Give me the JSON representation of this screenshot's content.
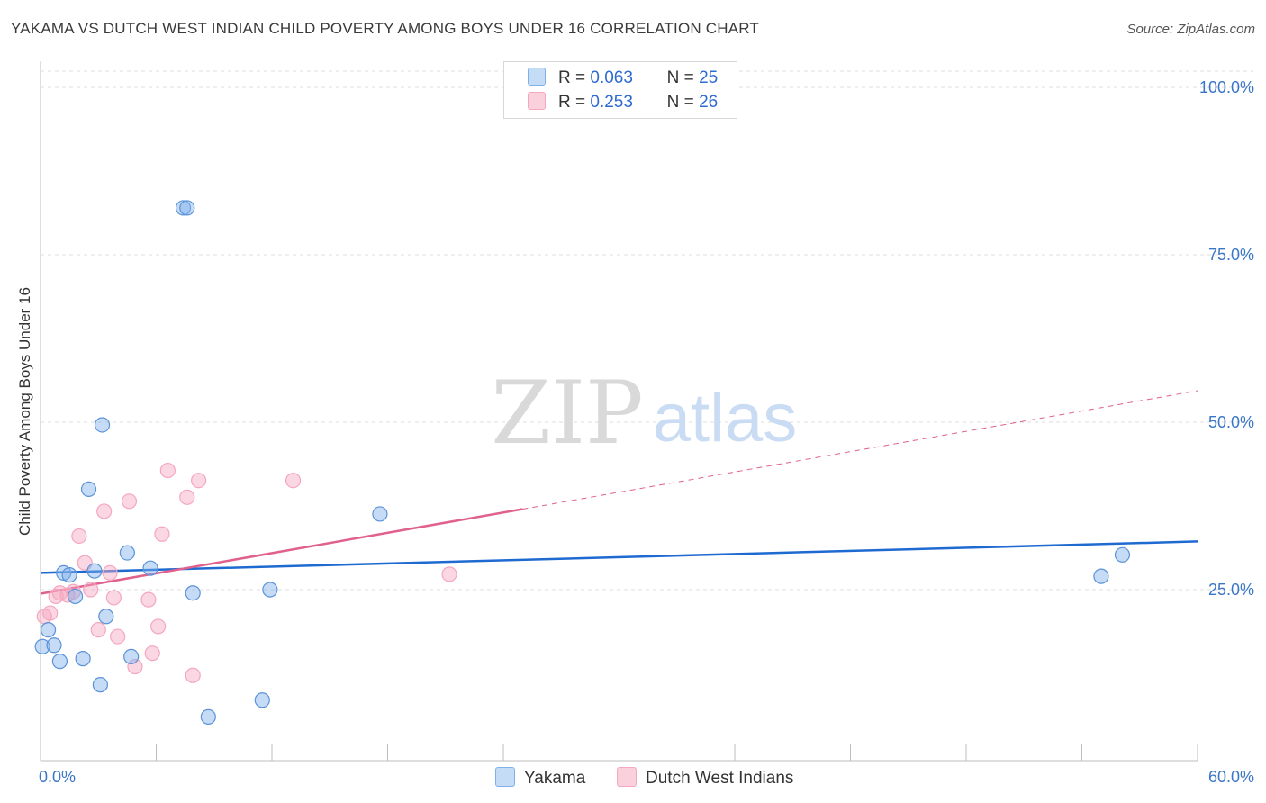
{
  "header": {
    "title": "YAKAMA VS DUTCH WEST INDIAN CHILD POVERTY AMONG BOYS UNDER 16 CORRELATION CHART",
    "source": "Source: ZipAtlas.com"
  },
  "watermark": {
    "zip": "ZIP",
    "atlas": "atlas"
  },
  "legend": {
    "r_label": "R =",
    "n_label": "N =",
    "rows": [
      {
        "r": "0.063",
        "n": "25"
      },
      {
        "r": "0.253",
        "n": "26"
      }
    ]
  },
  "chart_data": {
    "type": "scatter",
    "title": "YAKAMA VS DUTCH WEST INDIAN CHILD POVERTY AMONG BOYS UNDER 16 CORRELATION CHART",
    "xlabel": "",
    "ylabel": "Child Poverty Among Boys Under 16",
    "xlim": [
      0,
      60
    ],
    "ylim": [
      0,
      105
    ],
    "x_tick_labels": [
      "0.0%",
      "60.0%"
    ],
    "y_ticks": [
      25,
      50,
      75,
      100
    ],
    "y_tick_labels": [
      "25.0%",
      "50.0%",
      "75.0%",
      "100.0%"
    ],
    "grid": true,
    "colors": {
      "yakama": "#7fb0ea",
      "dutch": "#f4a7bf",
      "yakama_line": "#1f6ad1",
      "dutch_line": "#e0608e",
      "tick": "#3a76c8"
    },
    "series": [
      {
        "name": "Yakama",
        "r": 0.063,
        "n": 25,
        "points": [
          [
            0.1,
            16.5
          ],
          [
            0.4,
            19.0
          ],
          [
            0.7,
            16.7
          ],
          [
            1.0,
            14.3
          ],
          [
            1.2,
            27.5
          ],
          [
            1.5,
            27.2
          ],
          [
            1.8,
            24.0
          ],
          [
            2.2,
            14.7
          ],
          [
            2.5,
            40.0
          ],
          [
            2.8,
            27.8
          ],
          [
            3.1,
            10.8
          ],
          [
            3.2,
            49.6
          ],
          [
            3.4,
            21.0
          ],
          [
            4.5,
            30.5
          ],
          [
            4.7,
            15.0
          ],
          [
            5.7,
            28.2
          ],
          [
            7.4,
            82.0
          ],
          [
            7.6,
            82.0
          ],
          [
            7.9,
            24.5
          ],
          [
            8.7,
            6.0
          ],
          [
            11.5,
            8.5
          ],
          [
            11.9,
            25.0
          ],
          [
            17.6,
            36.3
          ],
          [
            55.0,
            27.0
          ],
          [
            56.1,
            30.2
          ]
        ],
        "trend": {
          "x": [
            0,
            60
          ],
          "y": [
            27.5,
            32.2
          ]
        }
      },
      {
        "name": "Dutch West Indians",
        "r": 0.253,
        "n": 26,
        "points": [
          [
            0.2,
            21.0
          ],
          [
            0.5,
            21.5
          ],
          [
            0.8,
            24.0
          ],
          [
            1.0,
            24.5
          ],
          [
            1.4,
            24.2
          ],
          [
            1.7,
            24.7
          ],
          [
            2.0,
            33.0
          ],
          [
            2.3,
            29.0
          ],
          [
            2.6,
            25.0
          ],
          [
            3.0,
            19.0
          ],
          [
            3.3,
            36.7
          ],
          [
            3.6,
            27.5
          ],
          [
            3.8,
            23.8
          ],
          [
            4.0,
            18.0
          ],
          [
            4.6,
            38.2
          ],
          [
            4.9,
            13.5
          ],
          [
            5.6,
            23.5
          ],
          [
            5.8,
            15.5
          ],
          [
            6.1,
            19.5
          ],
          [
            6.3,
            33.3
          ],
          [
            6.6,
            42.8
          ],
          [
            7.6,
            38.8
          ],
          [
            7.9,
            12.2
          ],
          [
            8.2,
            41.3
          ],
          [
            13.1,
            41.3
          ],
          [
            21.2,
            27.3
          ]
        ],
        "trend": {
          "x": [
            0,
            60
          ],
          "y": [
            24.4,
            54.7
          ],
          "solid_until_x": 25
        }
      }
    ]
  },
  "bottom_legend": {
    "items": [
      {
        "label": "Yakama"
      },
      {
        "label": "Dutch West Indians"
      }
    ]
  }
}
